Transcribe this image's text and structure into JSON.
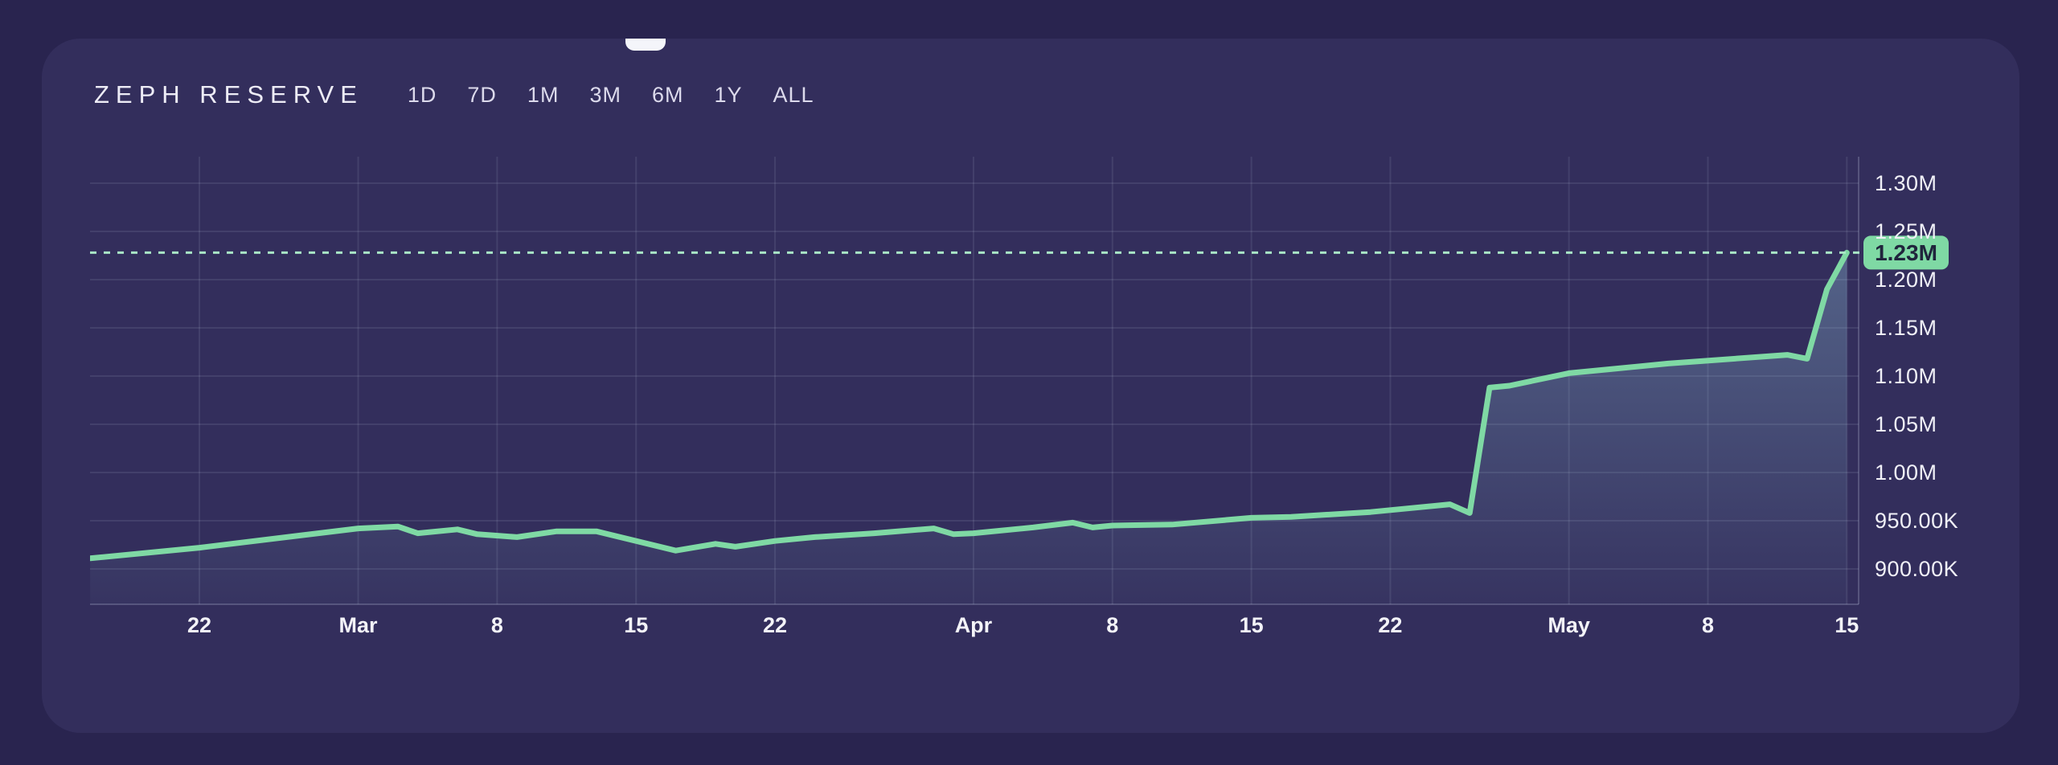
{
  "header": {
    "title": "ZEPH RESERVE",
    "ranges": [
      "1D",
      "7D",
      "1M",
      "3M",
      "6M",
      "1Y",
      "ALL"
    ]
  },
  "chart_data": {
    "type": "area",
    "title": "ZEPH RESERVE",
    "values_in": "thousands",
    "ylim": [
      900,
      1300
    ],
    "grid": true,
    "y_ticks": [
      {
        "label": "1.30M",
        "value": 1300
      },
      {
        "label": "1.25M",
        "value": 1250
      },
      {
        "label": "1.20M",
        "value": 1200
      },
      {
        "label": "1.15M",
        "value": 1150
      },
      {
        "label": "1.10M",
        "value": 1100
      },
      {
        "label": "1.05M",
        "value": 1050
      },
      {
        "label": "1.00M",
        "value": 1000
      },
      {
        "label": "950.00K",
        "value": 950
      },
      {
        "label": "900.00K",
        "value": 900
      }
    ],
    "x_ticks": [
      {
        "label": "22",
        "day": 6
      },
      {
        "label": "Mar",
        "day": 14
      },
      {
        "label": "8",
        "day": 21
      },
      {
        "label": "15",
        "day": 28
      },
      {
        "label": "22",
        "day": 35
      },
      {
        "label": "Apr",
        "day": 45
      },
      {
        "label": "8",
        "day": 52
      },
      {
        "label": "15",
        "day": 59
      },
      {
        "label": "22",
        "day": 66
      },
      {
        "label": "May",
        "day": 75
      },
      {
        "label": "8",
        "day": 82
      },
      {
        "label": "15",
        "day": 89
      }
    ],
    "series": [
      {
        "name": "reserve",
        "points": [
          [
            0.5,
            911
          ],
          [
            6,
            922
          ],
          [
            14,
            942
          ],
          [
            16,
            944
          ],
          [
            17,
            937
          ],
          [
            19,
            941
          ],
          [
            20,
            936
          ],
          [
            22,
            933
          ],
          [
            24,
            939
          ],
          [
            26,
            939
          ],
          [
            30,
            919
          ],
          [
            32,
            926
          ],
          [
            33,
            923
          ],
          [
            35,
            929
          ],
          [
            37,
            933
          ],
          [
            40,
            937
          ],
          [
            43,
            942
          ],
          [
            44,
            936
          ],
          [
            45,
            937
          ],
          [
            48,
            943
          ],
          [
            50,
            948
          ],
          [
            51,
            943
          ],
          [
            52,
            945
          ],
          [
            55,
            946
          ],
          [
            59,
            953
          ],
          [
            61,
            954
          ],
          [
            65,
            959
          ],
          [
            69,
            967
          ],
          [
            70,
            958
          ],
          [
            71,
            1088
          ],
          [
            72,
            1090
          ],
          [
            75,
            1103
          ],
          [
            77,
            1107
          ],
          [
            80,
            1113
          ],
          [
            86,
            1122
          ],
          [
            87,
            1118
          ],
          [
            88,
            1190
          ],
          [
            89,
            1228
          ]
        ]
      }
    ],
    "marker": {
      "label": "1.23M",
      "value": 1228
    },
    "colors": {
      "line": "#7fd9a4",
      "dotted": "#a9e7c6",
      "badge_bg": "#7fd9a4",
      "badge_text": "#20243c",
      "fill": "#96cde1",
      "grid": "rgba(216,221,245,0.10)",
      "axis": "rgba(216,221,245,0.22)"
    }
  }
}
